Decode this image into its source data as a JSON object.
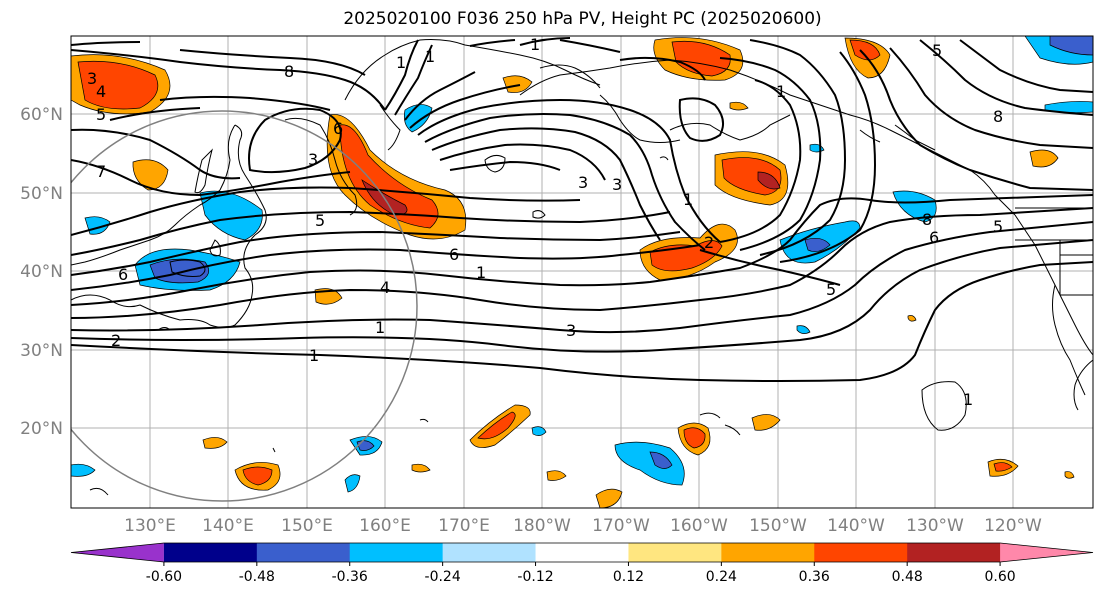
{
  "title": "2025020100 F036 250 hPa PV, Height PC (2025020600)",
  "lat_labels": [
    "60°N",
    "50°N",
    "40°N",
    "30°N",
    "20°N"
  ],
  "lon_labels": [
    "130°E",
    "140°E",
    "150°E",
    "160°E",
    "170°E",
    "180°W",
    "170°W",
    "160°W",
    "150°W",
    "140°W",
    "130°W",
    "120°W"
  ],
  "contour_labels": [
    "8",
    "3",
    "4",
    "5",
    "7",
    "6",
    "6",
    "3",
    "5",
    "6",
    "4",
    "2",
    "1",
    "1",
    "1",
    "3",
    "3",
    "1",
    "2",
    "5",
    "1",
    "6",
    "8",
    "5",
    "1",
    "3",
    "1",
    "1",
    "8",
    "5",
    "1"
  ],
  "colorbar": {
    "ticks": [
      "-0.60",
      "-0.48",
      "-0.36",
      "-0.24",
      "-0.12",
      "0.12",
      "0.24",
      "0.36",
      "0.48",
      "0.60"
    ],
    "colors": [
      "#9932cc",
      "#00008b",
      "#3a5fcd",
      "#00bfff",
      "#b0e2ff",
      "#ffffff",
      "#ffe680",
      "#ffa500",
      "#ff4500",
      "#b22222",
      "#ff88aa"
    ]
  }
}
